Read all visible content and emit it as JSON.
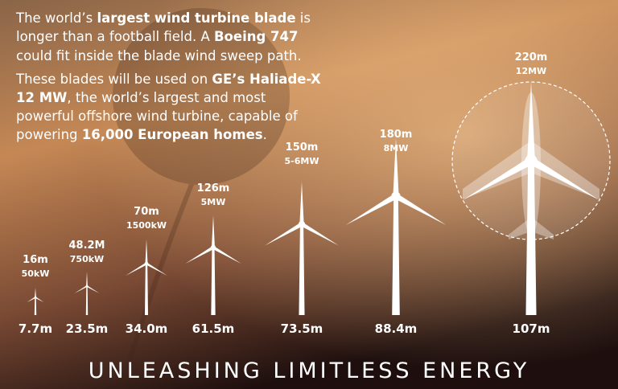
{
  "intro": [
    [
      {
        "text": "The world’s "
      },
      {
        "text": "largest wind turbine blade",
        "bold": true
      },
      {
        "text": " is"
      }
    ],
    [
      {
        "text": "longer than a football field. A "
      },
      {
        "text": "Boeing 747",
        "bold": true
      }
    ],
    [
      {
        "text": "could fit inside the blade wind sweep path."
      }
    ],
    [
      {
        "text": "These blades will be used on "
      },
      {
        "text": "GE’s Haliade-X",
        "bold": true
      }
    ],
    [
      {
        "text": "12 MW",
        "bold": true
      },
      {
        "text": ", the world’s largest and most"
      }
    ],
    [
      {
        "text": "powerful offshore wind turbine, capable of"
      }
    ],
    [
      {
        "text": "powering "
      },
      {
        "text": "16,000 European homes",
        "bold": true
      },
      {
        "text": "."
      }
    ]
  ],
  "turbines": [
    {
      "size": "16m",
      "power": "50kW",
      "height": "7.7m"
    },
    {
      "size": "48.2M",
      "power": "750kW",
      "height": "23.5m"
    },
    {
      "size": "70m",
      "power": "1500kW",
      "height": "34.0m"
    },
    {
      "size": "126m",
      "power": "5MW",
      "height": "61.5m"
    },
    {
      "size": "150m",
      "power": "5-6MW",
      "height": "73.5m"
    },
    {
      "size": "180m",
      "power": "8MW",
      "height": "88.4m"
    },
    {
      "size": "220m",
      "power": "12MW",
      "height": "107m"
    }
  ],
  "tagline": "UNLEASHING LIMITLESS ENERGY"
}
